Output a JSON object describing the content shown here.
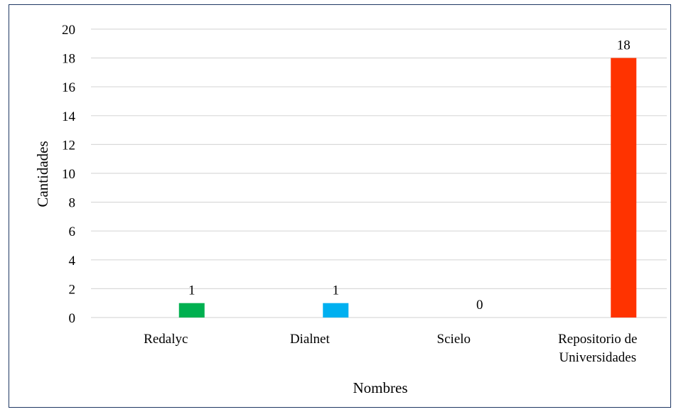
{
  "chart_data": {
    "type": "bar",
    "title": "",
    "xlabel": "Nombres",
    "ylabel": "Cantidades",
    "categories": [
      [
        "Redalyc"
      ],
      [
        "Dialnet"
      ],
      [
        "Scielo"
      ],
      [
        "Repositorio de",
        "Universidades"
      ]
    ],
    "values": [
      1,
      1,
      0,
      18
    ],
    "data_labels": [
      "1",
      "1",
      "0",
      "18"
    ],
    "colors": [
      "#00b050",
      "#00b0f0",
      "#00b0f0",
      "#ff3300"
    ],
    "ylim": [
      0,
      20
    ],
    "yticks": [
      "0",
      "2",
      "4",
      "6",
      "8",
      "10",
      "12",
      "14",
      "16",
      "18",
      "20"
    ],
    "gridlines": true,
    "legend": "none",
    "frame_color": "#1f3864",
    "grid_color": "#d9d9d9"
  }
}
